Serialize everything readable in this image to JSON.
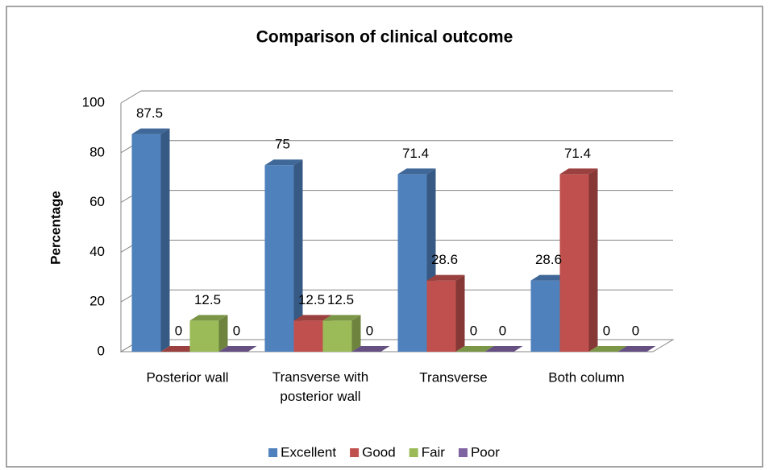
{
  "chart_data": {
    "type": "bar3d",
    "title": "Comparison of clinical outcome",
    "y_label": "Percentage",
    "categories": [
      "Posterior wall",
      "Transverse with posterior wall",
      "Transverse",
      "Both column"
    ],
    "series": [
      {
        "name": "Excellent",
        "color": "#4f81bd",
        "values": [
          87.5,
          75,
          71.4,
          28.6
        ]
      },
      {
        "name": "Good",
        "color": "#c0504d",
        "values": [
          0,
          12.5,
          28.6,
          71.4
        ]
      },
      {
        "name": "Fair",
        "color": "#9bbb59",
        "values": [
          12.5,
          12.5,
          0,
          0
        ]
      },
      {
        "name": "Poor",
        "color": "#8064a2",
        "values": [
          0,
          0,
          0,
          0
        ]
      }
    ],
    "ylim": [
      0,
      100
    ],
    "yticks": [
      0,
      20,
      40,
      60,
      80,
      100
    ],
    "grid": true,
    "legend": "bottom"
  }
}
